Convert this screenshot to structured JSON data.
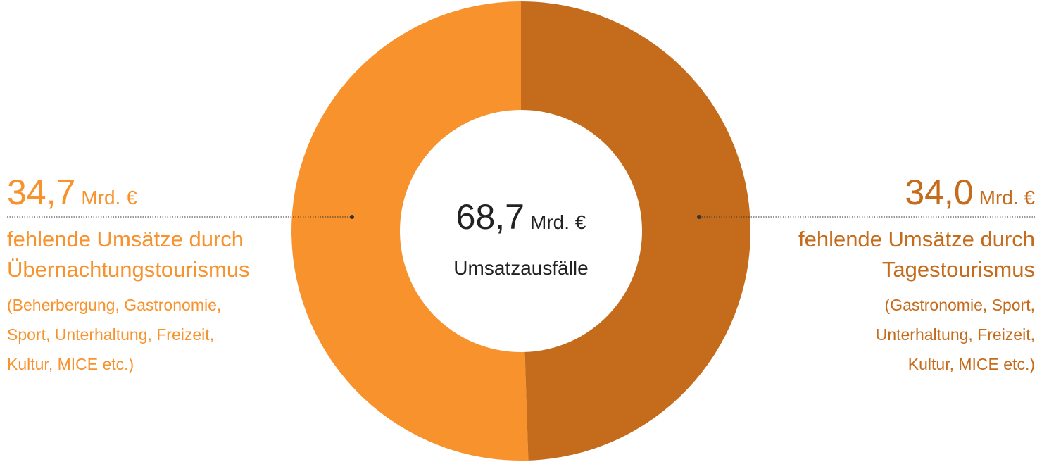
{
  "chart_data": {
    "type": "donut",
    "values": [
      34.7,
      34.0
    ],
    "value_labels": [
      "34,7",
      "34,0"
    ],
    "colors": [
      "#f7922d",
      "#c46c1c"
    ],
    "unit": "Mrd. €",
    "total": 68.7,
    "total_label": "68,7",
    "center_text": "Umsatzausfälle",
    "labels": [
      [
        "fehlende Umsätze durch",
        "Übernachtungstourismus"
      ],
      [
        "fehlende Umsätze durch",
        "Tagestourismus"
      ]
    ],
    "details": [
      [
        "(Beherbergung, Gastronomie,",
        "Sport, Unterhaltung, Freizeit,",
        "Kultur, MICE etc.)"
      ],
      [
        "(Gastronomie, Sport,",
        "Unterhaltung, Freizeit,",
        "Kultur, MICE etc.)"
      ]
    ]
  }
}
